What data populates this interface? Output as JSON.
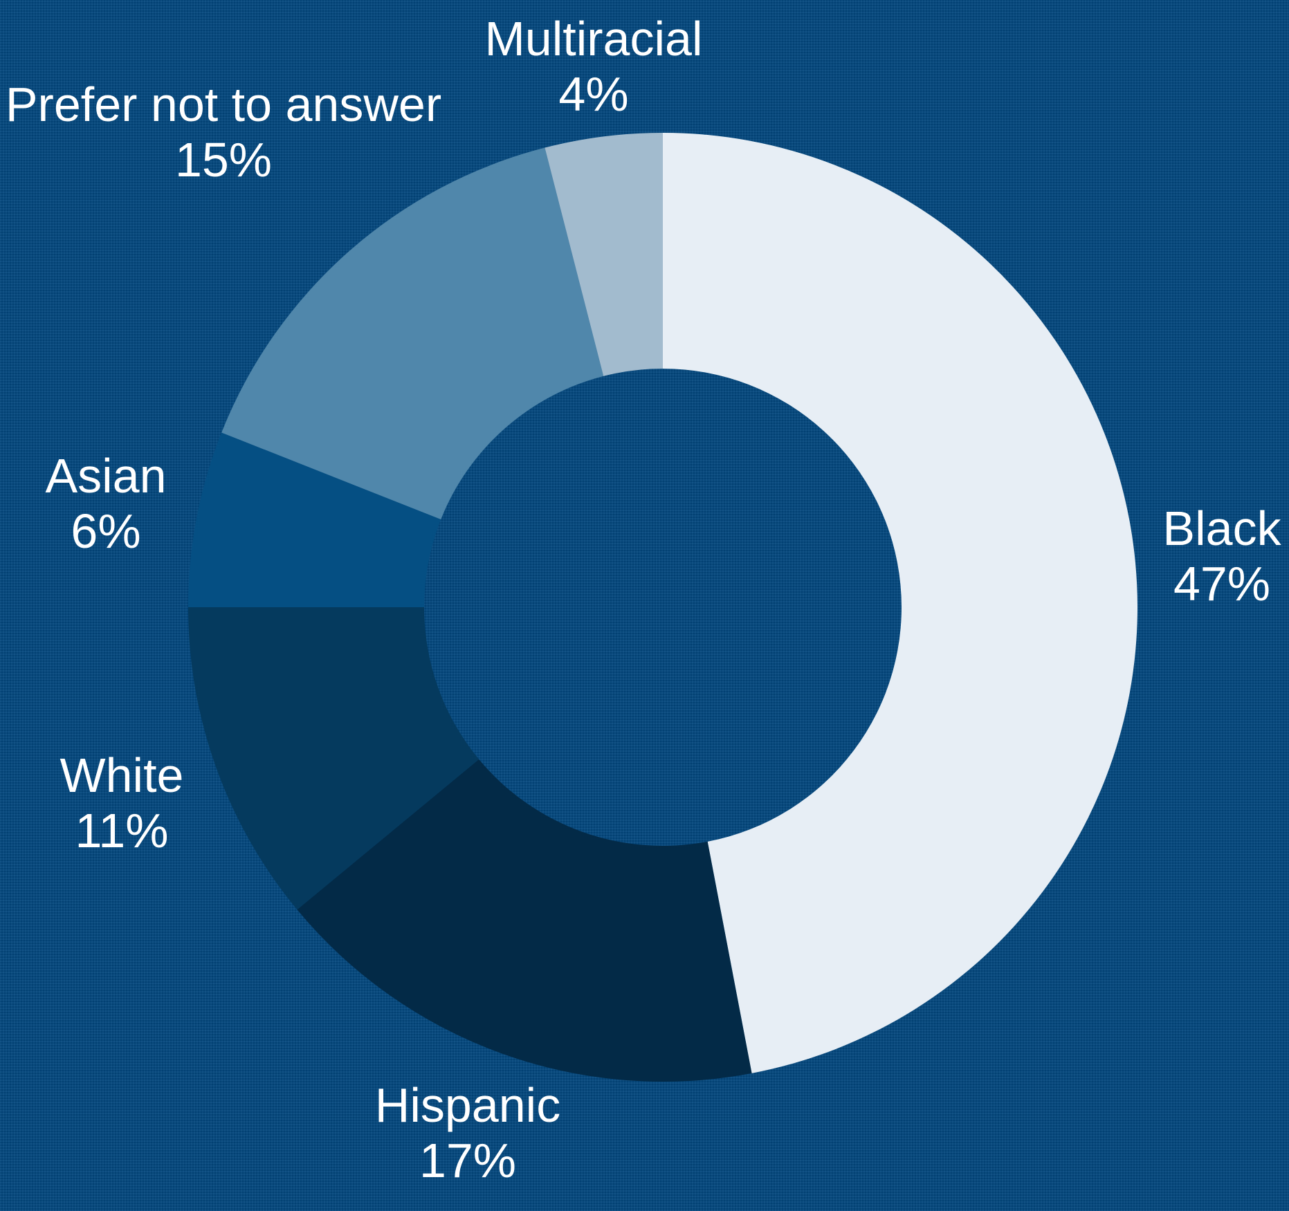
{
  "chart_data": {
    "type": "pie",
    "title": "",
    "donut": true,
    "categories": [
      "Black",
      "Hispanic",
      "White",
      "Asian",
      "Prefer not to answer",
      "Multiracial"
    ],
    "values": [
      47,
      17,
      11,
      6,
      15,
      4
    ],
    "value_labels": [
      "47%",
      "17%",
      "11%",
      "6%",
      "15%",
      "4%"
    ],
    "colors": [
      "#e7eef5",
      "#032a47",
      "#053a5e",
      "#054f83",
      "#5087ab",
      "#a2bbce"
    ],
    "start": "12 o'clock",
    "direction": "clockwise",
    "legend": "none"
  }
}
